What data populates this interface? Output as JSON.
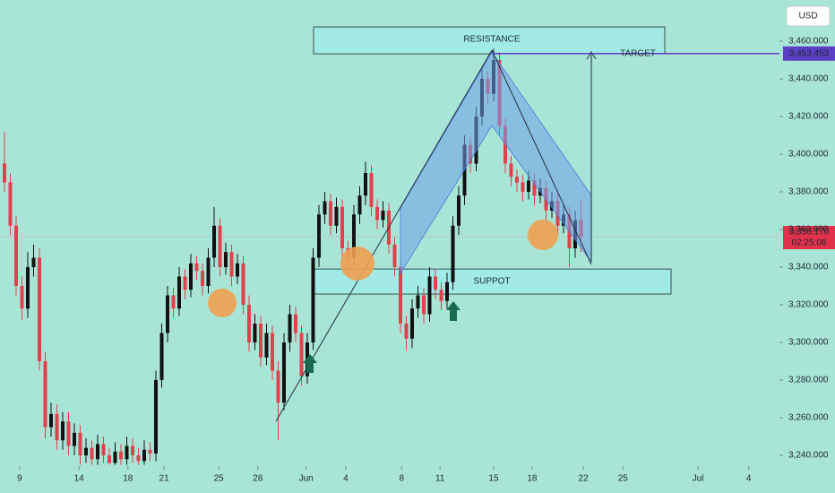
{
  "chart_data": {
    "type": "candlestick",
    "currency": "USD",
    "colors": {
      "up": "#111111",
      "down": "#e2404f"
    },
    "ylim": [
      3234.3,
      3481.9
    ],
    "xlim": [
      -0.77,
      133.08
    ],
    "yticks": [
      {
        "value": 3240,
        "label": "3,240.000"
      },
      {
        "value": 3260,
        "label": "3,260.000"
      },
      {
        "value": 3280,
        "label": "3,280.000"
      },
      {
        "value": 3300,
        "label": "3,300.000"
      },
      {
        "value": 3320,
        "label": "3,320.000"
      },
      {
        "value": 3340,
        "label": "3,340.000"
      },
      {
        "value": 3360,
        "label": "3,360.000"
      },
      {
        "value": 3380,
        "label": "3,380.000"
      },
      {
        "value": 3400,
        "label": "3,400.000"
      },
      {
        "value": 3420,
        "label": "3,420.000"
      },
      {
        "value": 3440,
        "label": "3,440.000"
      },
      {
        "value": 3460,
        "label": "3,460.000"
      }
    ],
    "xticks": [
      {
        "value": 2.6,
        "label": "9"
      },
      {
        "value": 12.8,
        "label": "14"
      },
      {
        "value": 21.2,
        "label": "18"
      },
      {
        "value": 27.4,
        "label": "21"
      },
      {
        "value": 36.8,
        "label": "25"
      },
      {
        "value": 43.5,
        "label": "28"
      },
      {
        "value": 51.8,
        "label": "Jun"
      },
      {
        "value": 58.6,
        "label": "4"
      },
      {
        "value": 68.2,
        "label": "8"
      },
      {
        "value": 74.8,
        "label": "11"
      },
      {
        "value": 84,
        "label": "15"
      },
      {
        "value": 90.6,
        "label": "18"
      },
      {
        "value": 99.4,
        "label": "22"
      },
      {
        "value": 106.2,
        "label": "25"
      },
      {
        "value": 119.1,
        "label": "Jul"
      },
      {
        "value": 127.8,
        "label": "4"
      }
    ],
    "open": [
      3395,
      3385,
      3362,
      3330,
      3318,
      3340,
      3345,
      3290,
      3255,
      3262,
      3248,
      3258,
      3245,
      3252,
      3240,
      3244,
      3238,
      3246,
      3240,
      3236,
      3242,
      3238,
      3245,
      3240,
      3237,
      3243,
      3241,
      3280,
      3305,
      3325,
      3318,
      3335,
      3328,
      3342,
      3338,
      3330,
      3345,
      3362,
      3340,
      3348,
      3335,
      3342,
      3320,
      3300,
      3310,
      3292,
      3305,
      3285,
      3268,
      3300,
      3315,
      3305,
      3282,
      3300,
      3345,
      3368,
      3375,
      3362,
      3372,
      3350,
      3345,
      3368,
      3378,
      3390,
      3372,
      3365,
      3370,
      3352,
      3340,
      3310,
      3302,
      3318,
      3325,
      3315,
      3335,
      3328,
      3322,
      3332,
      3362,
      3378,
      3405,
      3395,
      3420,
      3440,
      3432,
      3450,
      3415,
      3395,
      3388,
      3385,
      3380,
      3386,
      3378,
      3382,
      3370,
      3375,
      3362,
      3368,
      3350,
      3365
    ],
    "high": [
      3412,
      3390,
      3367,
      3335,
      3348,
      3352,
      3350,
      3295,
      3268,
      3267,
      3263,
      3263,
      3257,
      3256,
      3249,
      3248,
      3251,
      3250,
      3244,
      3247,
      3246,
      3250,
      3249,
      3244,
      3248,
      3247,
      3285,
      3310,
      3330,
      3329,
      3340,
      3339,
      3347,
      3346,
      3342,
      3350,
      3372,
      3366,
      3353,
      3352,
      3347,
      3346,
      3325,
      3315,
      3314,
      3310,
      3309,
      3290,
      3305,
      3320,
      3319,
      3309,
      3305,
      3350,
      3373,
      3380,
      3379,
      3377,
      3376,
      3354,
      3373,
      3383,
      3396,
      3394,
      3376,
      3375,
      3374,
      3356,
      3344,
      3314,
      3323,
      3330,
      3329,
      3340,
      3339,
      3332,
      3337,
      3367,
      3383,
      3410,
      3409,
      3425,
      3445,
      3444,
      3456,
      3454,
      3419,
      3399,
      3392,
      3389,
      3391,
      3390,
      3387,
      3386,
      3380,
      3379,
      3373,
      3372,
      3370,
      3376
    ],
    "low": [
      3380,
      3357,
      3325,
      3312,
      3313,
      3335,
      3285,
      3249,
      3250,
      3243,
      3243,
      3240,
      3240,
      3235,
      3236,
      3235,
      3235,
      3236,
      3235,
      3235,
      3235,
      3235,
      3236,
      3235,
      3235,
      3237,
      3237,
      3276,
      3300,
      3313,
      3314,
      3323,
      3324,
      3333,
      3325,
      3326,
      3340,
      3335,
      3336,
      3330,
      3331,
      3315,
      3295,
      3296,
      3287,
      3288,
      3280,
      3248,
      3264,
      3295,
      3300,
      3277,
      3278,
      3296,
      3340,
      3363,
      3357,
      3358,
      3345,
      3340,
      3341,
      3363,
      3373,
      3367,
      3360,
      3361,
      3347,
      3335,
      3305,
      3296,
      3297,
      3313,
      3310,
      3311,
      3323,
      3317,
      3318,
      3328,
      3357,
      3373,
      3390,
      3391,
      3415,
      3427,
      3428,
      3410,
      3390,
      3383,
      3380,
      3375,
      3376,
      3373,
      3374,
      3365,
      3366,
      3357,
      3358,
      3340,
      3345,
      3348
    ],
    "close": [
      3385,
      3362,
      3330,
      3318,
      3340,
      3345,
      3290,
      3255,
      3262,
      3248,
      3258,
      3245,
      3252,
      3240,
      3244,
      3238,
      3246,
      3240,
      3236,
      3242,
      3238,
      3245,
      3240,
      3237,
      3243,
      3241,
      3280,
      3305,
      3325,
      3318,
      3335,
      3328,
      3342,
      3338,
      3330,
      3345,
      3362,
      3340,
      3348,
      3335,
      3342,
      3320,
      3300,
      3310,
      3292,
      3305,
      3285,
      3268,
      3300,
      3315,
      3305,
      3282,
      3300,
      3345,
      3368,
      3375,
      3362,
      3372,
      3350,
      3345,
      3368,
      3378,
      3390,
      3372,
      3365,
      3370,
      3352,
      3340,
      3310,
      3302,
      3318,
      3325,
      3315,
      3335,
      3328,
      3322,
      3332,
      3362,
      3378,
      3405,
      3395,
      3420,
      3440,
      3432,
      3450,
      3415,
      3395,
      3388,
      3385,
      3380,
      3386,
      3378,
      3382,
      3370,
      3375,
      3362,
      3368,
      3350,
      3365,
      3356.17
    ],
    "last_price_label": "3,356.170",
    "countdown": "02:25:08",
    "target": {
      "label": "TARGET",
      "value": 3453.453,
      "value_label": "3,453.453",
      "color": "#5b3fc4"
    },
    "zones": [
      {
        "label": "RESISTANCE",
        "y": [
          3453.3,
          3467.6
        ]
      },
      {
        "label": "SUPPOT",
        "y": [
          3325.7,
          3339
        ]
      }
    ]
  }
}
